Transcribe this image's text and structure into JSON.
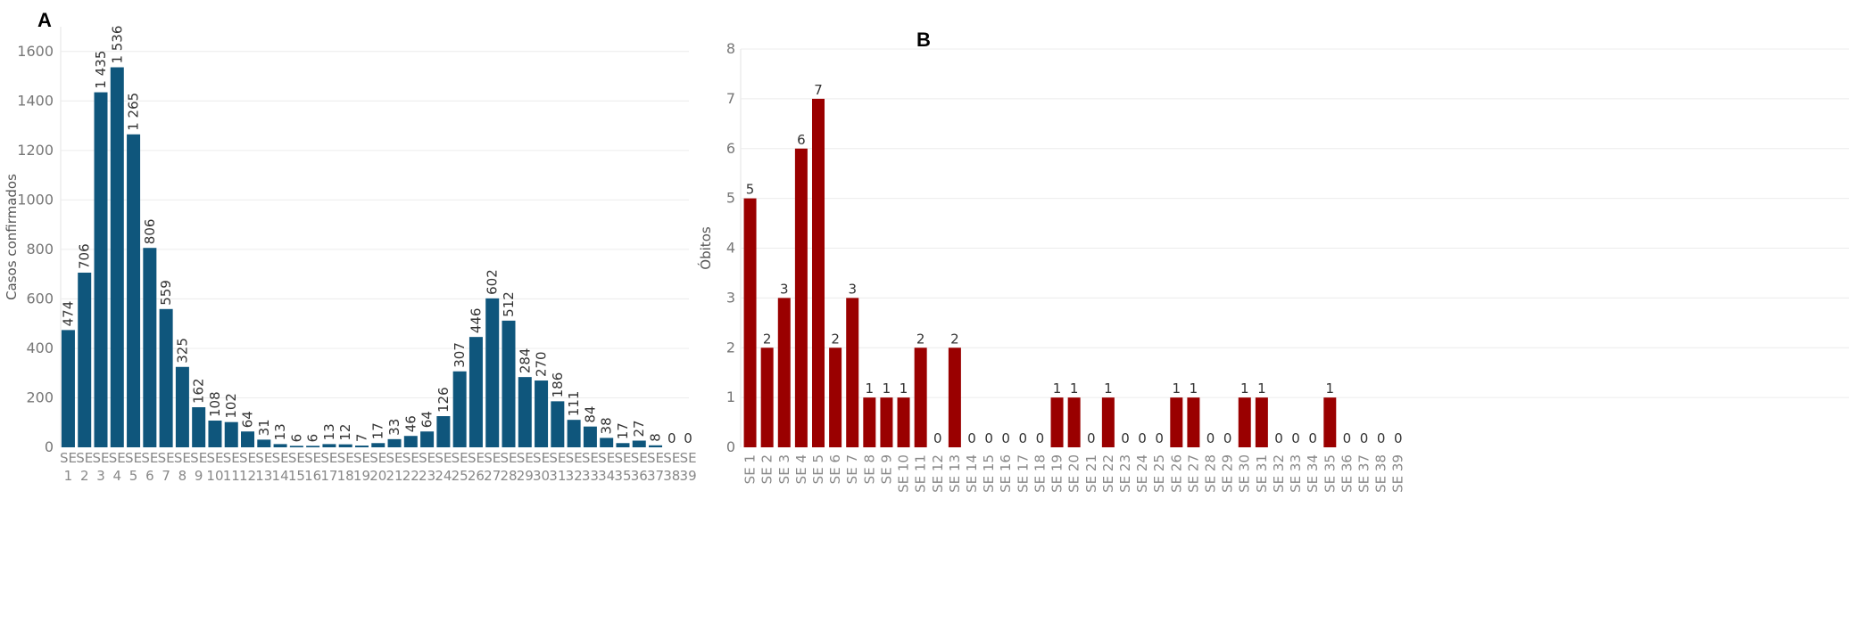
{
  "panel_a_letter": "A",
  "panel_b_letter": "B",
  "chart_data": [
    {
      "type": "bar",
      "panel": "A",
      "ylabel": "Casos confirmados",
      "xlabel": "",
      "ylim": [
        0,
        1700
      ],
      "yticks": [
        0,
        200,
        400,
        600,
        800,
        1000,
        1200,
        1400,
        1600
      ],
      "grid": true,
      "color": "#0f567c",
      "categories": [
        "SE 1",
        "SE 2",
        "SE 3",
        "SE 4",
        "SE 5",
        "SE 6",
        "SE 7",
        "SE 8",
        "SE 9",
        "SE 10",
        "SE 11",
        "SE 12",
        "SE 13",
        "SE 14",
        "SE 15",
        "SE 16",
        "SE 17",
        "SE 18",
        "SE 19",
        "SE 20",
        "SE 21",
        "SE 22",
        "SE 23",
        "SE 24",
        "SE 25",
        "SE 26",
        "SE 27",
        "SE 28",
        "SE 29",
        "SE 30",
        "SE 31",
        "SE 32",
        "SE 33",
        "SE 34",
        "SE 35",
        "SE 36",
        "SE 37",
        "SE 38",
        "SE 39"
      ],
      "values": [
        474,
        706,
        1435,
        1536,
        1265,
        806,
        559,
        325,
        162,
        108,
        102,
        64,
        31,
        13,
        6,
        6,
        13,
        12,
        7,
        17,
        33,
        46,
        64,
        126,
        307,
        446,
        602,
        512,
        284,
        270,
        186,
        111,
        84,
        38,
        17,
        27,
        8,
        0,
        0
      ],
      "value_labels": [
        "474",
        "706",
        "1 435",
        "1 536",
        "1 265",
        "806",
        "559",
        "325",
        "162",
        "108",
        "102",
        "64",
        "31",
        "13",
        "6",
        "6",
        "13",
        "12",
        "7",
        "17",
        "33",
        "46",
        "64",
        "126",
        "307",
        "446",
        "602",
        "512",
        "284",
        "270",
        "186",
        "111",
        "84",
        "38",
        "17",
        "27",
        "8",
        "0",
        "0"
      ]
    },
    {
      "type": "bar",
      "panel": "B",
      "ylabel": "Óbitos",
      "xlabel": "",
      "ylim": [
        0,
        8
      ],
      "yticks": [
        0,
        1,
        2,
        3,
        4,
        5,
        6,
        7,
        8
      ],
      "grid": true,
      "color": "#9a0000",
      "categories": [
        "SE 1",
        "SE 2",
        "SE 3",
        "SE 4",
        "SE 5",
        "SE 6",
        "SE 7",
        "SE 8",
        "SE 9",
        "SE 10",
        "SE 11",
        "SE 12",
        "SE 13",
        "SE 14",
        "SE 15",
        "SE 16",
        "SE 17",
        "SE 18",
        "SE 19",
        "SE 20",
        "SE 21",
        "SE 22",
        "SE 23",
        "SE 24",
        "SE 25",
        "SE 26",
        "SE 27",
        "SE 28",
        "SE 29",
        "SE 30",
        "SE 31",
        "SE 32",
        "SE 33",
        "SE 34",
        "SE 35",
        "SE 36",
        "SE 37",
        "SE 38",
        "SE 39"
      ],
      "values": [
        5,
        2,
        3,
        6,
        7,
        2,
        3,
        1,
        1,
        1,
        2,
        0,
        2,
        0,
        0,
        0,
        0,
        0,
        1,
        1,
        0,
        1,
        0,
        0,
        0,
        1,
        1,
        0,
        0,
        1,
        1,
        0,
        0,
        0,
        1,
        0,
        0,
        0,
        0
      ],
      "value_labels": [
        "5",
        "2",
        "3",
        "6",
        "7",
        "2",
        "3",
        "1",
        "1",
        "1",
        "2",
        "0",
        "2",
        "0",
        "0",
        "0",
        "0",
        "0",
        "1",
        "1",
        "0",
        "1",
        "0",
        "0",
        "0",
        "1",
        "1",
        "0",
        "0",
        "1",
        "1",
        "0",
        "0",
        "0",
        "1",
        "0",
        "0",
        "0",
        "0"
      ]
    }
  ]
}
